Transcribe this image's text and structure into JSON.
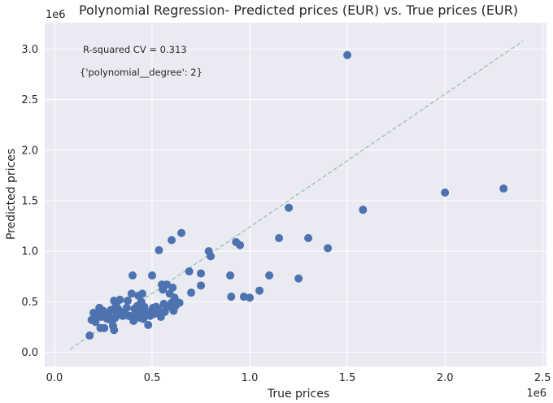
{
  "chart_data": {
    "type": "scatter",
    "title": "Polynomial Regression- Predicted prices (EUR) vs. True prices (EUR)",
    "xlabel": "True prices",
    "ylabel": "Predicted prices",
    "x_offset_text": "1e6",
    "y_offset_text": "1e6",
    "xlim": [
      -50000,
      2520000
    ],
    "ylim": [
      -140000,
      3260000
    ],
    "xticks": [
      0,
      500000,
      1000000,
      1500000,
      2000000,
      2500000
    ],
    "xtick_labels": [
      "0.0",
      "0.5",
      "1.0",
      "1.5",
      "2.0",
      "2.5"
    ],
    "yticks": [
      0,
      500000,
      1000000,
      1500000,
      2000000,
      2500000,
      3000000
    ],
    "ytick_labels": [
      "0.0",
      "0.5",
      "1.0",
      "1.5",
      "2.0",
      "2.5",
      "3.0"
    ],
    "grid": true,
    "annotations": [
      "R-squared CV = 0.313",
      "{'polynomial__degree': 2}"
    ],
    "point_color": "#4c72b0",
    "line_color": "#8fbfa6",
    "background_color": "#eaeaf2",
    "reference_line": {
      "x": [
        80000,
        2400000
      ],
      "y": [
        30000,
        3080000
      ]
    },
    "points": [
      [
        180000,
        165000
      ],
      [
        190000,
        320000
      ],
      [
        200000,
        390000
      ],
      [
        210000,
        300000
      ],
      [
        220000,
        370000
      ],
      [
        230000,
        440000
      ],
      [
        235000,
        240000
      ],
      [
        240000,
        350000
      ],
      [
        250000,
        410000
      ],
      [
        255000,
        240000
      ],
      [
        260000,
        380000
      ],
      [
        270000,
        330000
      ],
      [
        280000,
        360000
      ],
      [
        290000,
        420000
      ],
      [
        295000,
        310000
      ],
      [
        300000,
        260000
      ],
      [
        305000,
        510000
      ],
      [
        305000,
        220000
      ],
      [
        310000,
        340000
      ],
      [
        315000,
        470000
      ],
      [
        320000,
        390000
      ],
      [
        325000,
        430000
      ],
      [
        330000,
        370000
      ],
      [
        335000,
        520000
      ],
      [
        340000,
        400000
      ],
      [
        350000,
        360000
      ],
      [
        360000,
        380000
      ],
      [
        370000,
        440000
      ],
      [
        375000,
        510000
      ],
      [
        380000,
        360000
      ],
      [
        390000,
        360000
      ],
      [
        395000,
        580000
      ],
      [
        400000,
        340000
      ],
      [
        400000,
        760000
      ],
      [
        405000,
        310000
      ],
      [
        410000,
        430000
      ],
      [
        420000,
        370000
      ],
      [
        425000,
        460000
      ],
      [
        430000,
        560000
      ],
      [
        435000,
        410000
      ],
      [
        440000,
        340000
      ],
      [
        445000,
        500000
      ],
      [
        450000,
        580000
      ],
      [
        455000,
        330000
      ],
      [
        460000,
        450000
      ],
      [
        470000,
        390000
      ],
      [
        480000,
        270000
      ],
      [
        490000,
        360000
      ],
      [
        500000,
        760000
      ],
      [
        500000,
        420000
      ],
      [
        505000,
        440000
      ],
      [
        510000,
        380000
      ],
      [
        520000,
        450000
      ],
      [
        530000,
        430000
      ],
      [
        535000,
        1010000
      ],
      [
        540000,
        380000
      ],
      [
        545000,
        350000
      ],
      [
        550000,
        670000
      ],
      [
        555000,
        620000
      ],
      [
        560000,
        480000
      ],
      [
        565000,
        400000
      ],
      [
        570000,
        460000
      ],
      [
        575000,
        670000
      ],
      [
        580000,
        450000
      ],
      [
        590000,
        580000
      ],
      [
        600000,
        490000
      ],
      [
        600000,
        1110000
      ],
      [
        605000,
        640000
      ],
      [
        610000,
        410000
      ],
      [
        615000,
        540000
      ],
      [
        620000,
        460000
      ],
      [
        640000,
        490000
      ],
      [
        650000,
        1180000
      ],
      [
        690000,
        800000
      ],
      [
        700000,
        590000
      ],
      [
        750000,
        780000
      ],
      [
        750000,
        660000
      ],
      [
        790000,
        1000000
      ],
      [
        800000,
        950000
      ],
      [
        900000,
        760000
      ],
      [
        905000,
        550000
      ],
      [
        930000,
        1090000
      ],
      [
        950000,
        1060000
      ],
      [
        970000,
        550000
      ],
      [
        1000000,
        540000
      ],
      [
        1050000,
        610000
      ],
      [
        1100000,
        760000
      ],
      [
        1150000,
        1130000
      ],
      [
        1200000,
        1430000
      ],
      [
        1250000,
        730000
      ],
      [
        1300000,
        1130000
      ],
      [
        1400000,
        1030000
      ],
      [
        1500000,
        2940000
      ],
      [
        1580000,
        1410000
      ],
      [
        2000000,
        1580000
      ],
      [
        2300000,
        1620000
      ]
    ]
  }
}
